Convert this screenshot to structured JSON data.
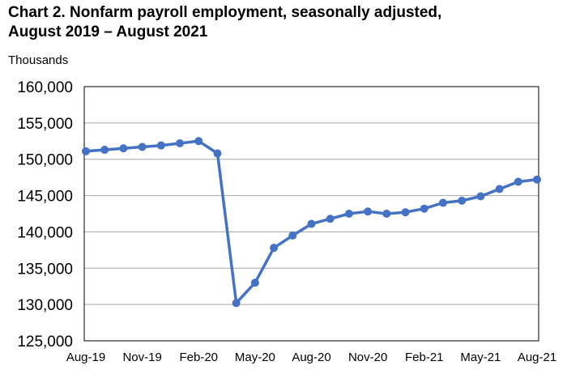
{
  "chart_data": {
    "type": "line",
    "title": "Chart 2. Nonfarm payroll employment, seasonally adjusted,",
    "subtitle": "August 2019 – August 2021",
    "ylabel": "Thousands",
    "ylim": [
      125000,
      160000
    ],
    "y_ticks": [
      "160,000",
      "155,000",
      "150,000",
      "145,000",
      "140,000",
      "135,000",
      "130,000",
      "125,000"
    ],
    "x_ticks": [
      "Aug-19",
      "Nov-19",
      "Feb-20",
      "May-20",
      "Aug-20",
      "Nov-20",
      "Feb-21",
      "May-21",
      "Aug-21"
    ],
    "x": [
      "Aug-19",
      "Sep-19",
      "Oct-19",
      "Nov-19",
      "Dec-19",
      "Jan-20",
      "Feb-20",
      "Mar-20",
      "Apr-20",
      "May-20",
      "Jun-20",
      "Jul-20",
      "Aug-20",
      "Sep-20",
      "Oct-20",
      "Nov-20",
      "Dec-20",
      "Jan-21",
      "Feb-21",
      "Mar-21",
      "Apr-21",
      "May-21",
      "Jun-21",
      "Jul-21",
      "Aug-21"
    ],
    "values": [
      151100,
      151300,
      151500,
      151700,
      151900,
      152200,
      152500,
      150800,
      130200,
      133000,
      137800,
      139500,
      141100,
      141800,
      142500,
      142800,
      142500,
      142700,
      143200,
      144000,
      144300,
      144900,
      145900,
      146900,
      147200
    ],
    "grid": true,
    "line_color": "#4472C4"
  }
}
